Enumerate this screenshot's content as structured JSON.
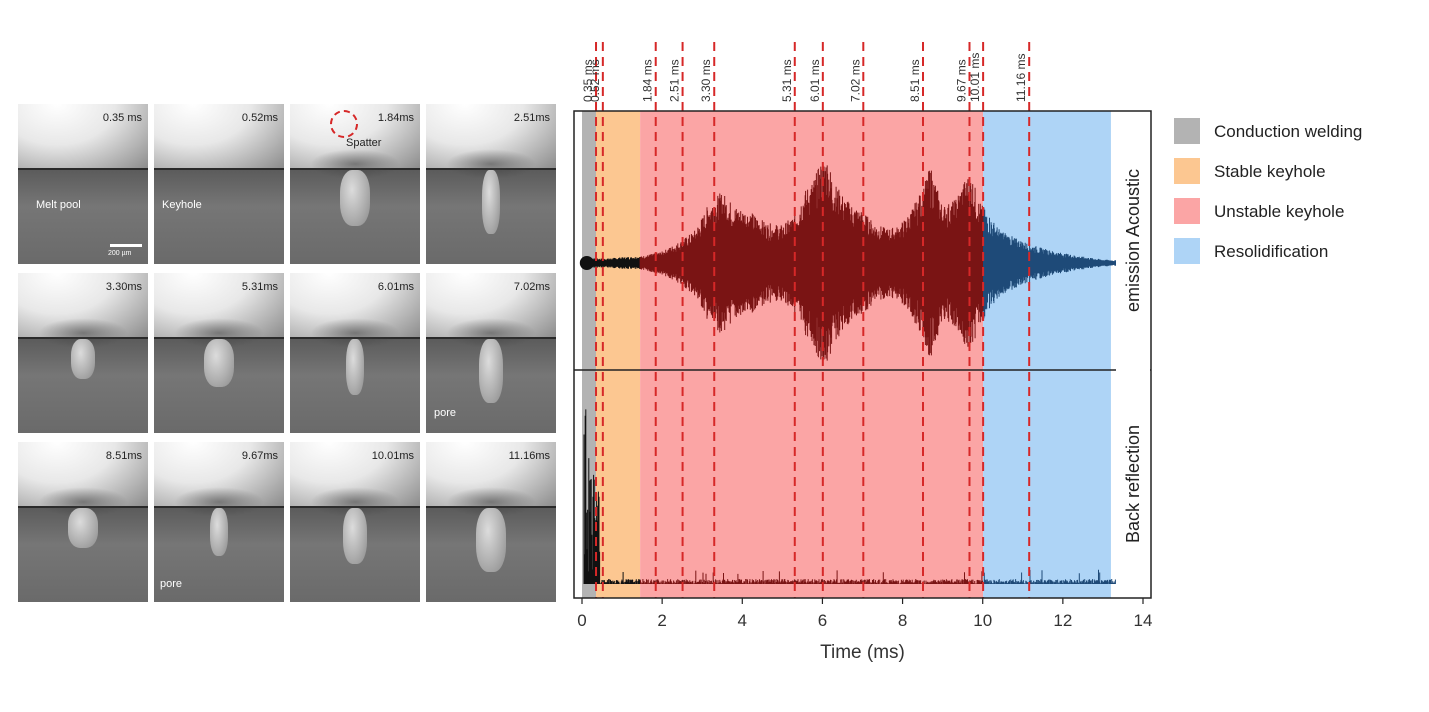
{
  "frames": [
    {
      "time": "0.35 ms",
      "note": "Melt pool"
    },
    {
      "time": "0.52ms",
      "note": "Keyhole"
    },
    {
      "time": "1.84ms",
      "note": "Spatter"
    },
    {
      "time": "2.51ms",
      "note": ""
    },
    {
      "time": "3.30ms",
      "note": ""
    },
    {
      "time": "5.31ms",
      "note": ""
    },
    {
      "time": "6.01ms",
      "note": ""
    },
    {
      "time": "7.02ms",
      "note": "pore"
    },
    {
      "time": "8.51ms",
      "note": ""
    },
    {
      "time": "9.67ms",
      "note": "pore"
    },
    {
      "time": "10.01ms",
      "note": ""
    },
    {
      "time": "11.16ms",
      "note": ""
    }
  ],
  "scalebar_label": "200 µm",
  "chart_data": {
    "type": "line",
    "xlabel": "Time (ms)",
    "xlim": [
      0,
      14
    ],
    "xticks": [
      0,
      2,
      4,
      6,
      8,
      10,
      12,
      14
    ],
    "panels": [
      {
        "name": "Acoustic emission",
        "label_lines": [
          "Acoustic",
          "emission"
        ]
      },
      {
        "name": "Back reflection",
        "label_lines": [
          "Back reflection"
        ]
      }
    ],
    "regions": [
      {
        "name": "Conduction welding",
        "from": 0.0,
        "to": 0.35,
        "color": "#b3b3b3"
      },
      {
        "name": "Stable keyhole",
        "from": 0.35,
        "to": 1.45,
        "color": "#fcc791"
      },
      {
        "name": "Unstable keyhole",
        "from": 1.45,
        "to": 10.01,
        "color": "#fba5a5"
      },
      {
        "name": "Resolidification",
        "from": 10.01,
        "to": 13.2,
        "color": "#aed4f6"
      }
    ],
    "marker_times": [
      0.35,
      0.52,
      1.84,
      2.51,
      3.3,
      5.31,
      6.01,
      7.02,
      8.51,
      9.67,
      10.01,
      11.16
    ],
    "marker_labels": [
      "0.35 ms",
      "0.52 ms",
      "1.84 ms",
      "2.51 ms",
      "3.30 ms",
      "5.31 ms",
      "6.01 ms",
      "7.02 ms",
      "8.51 ms",
      "9.67 ms",
      "10.01 ms",
      "11.16 ms"
    ],
    "marker_color": "#d62828",
    "signal_colors": {
      "unstable": "#7a1414",
      "resolidification": "#1e4a78",
      "other": "#111111"
    },
    "acoustic_envelope": {
      "t": [
        0,
        0.3,
        0.6,
        1.0,
        1.5,
        2.0,
        2.5,
        2.8,
        3.0,
        3.2,
        3.5,
        3.8,
        4.2,
        4.6,
        5.0,
        5.3,
        5.5,
        5.8,
        6.0,
        6.1,
        6.3,
        6.6,
        7.0,
        7.3,
        7.6,
        7.9,
        8.2,
        8.5,
        8.7,
        9.0,
        9.3,
        9.5,
        9.7,
        9.9,
        10.1,
        10.4,
        10.8,
        11.3,
        11.8,
        12.4,
        13.0,
        13.5,
        14.0
      ],
      "a": [
        0.02,
        0.04,
        0.04,
        0.05,
        0.06,
        0.1,
        0.2,
        0.28,
        0.4,
        0.55,
        0.62,
        0.5,
        0.45,
        0.35,
        0.33,
        0.42,
        0.6,
        0.75,
        0.9,
        0.95,
        0.7,
        0.55,
        0.45,
        0.35,
        0.3,
        0.32,
        0.45,
        0.65,
        0.85,
        0.5,
        0.55,
        0.7,
        0.8,
        0.55,
        0.45,
        0.3,
        0.22,
        0.15,
        0.1,
        0.06,
        0.03,
        0.02,
        0.02
      ]
    }
  },
  "legend": [
    {
      "label": "Conduction welding",
      "color": "#b3b3b3"
    },
    {
      "label": "Stable keyhole",
      "color": "#fcc791"
    },
    {
      "label": "Unstable keyhole",
      "color": "#fba5a5"
    },
    {
      "label": "Resolidification",
      "color": "#aed4f6"
    }
  ]
}
